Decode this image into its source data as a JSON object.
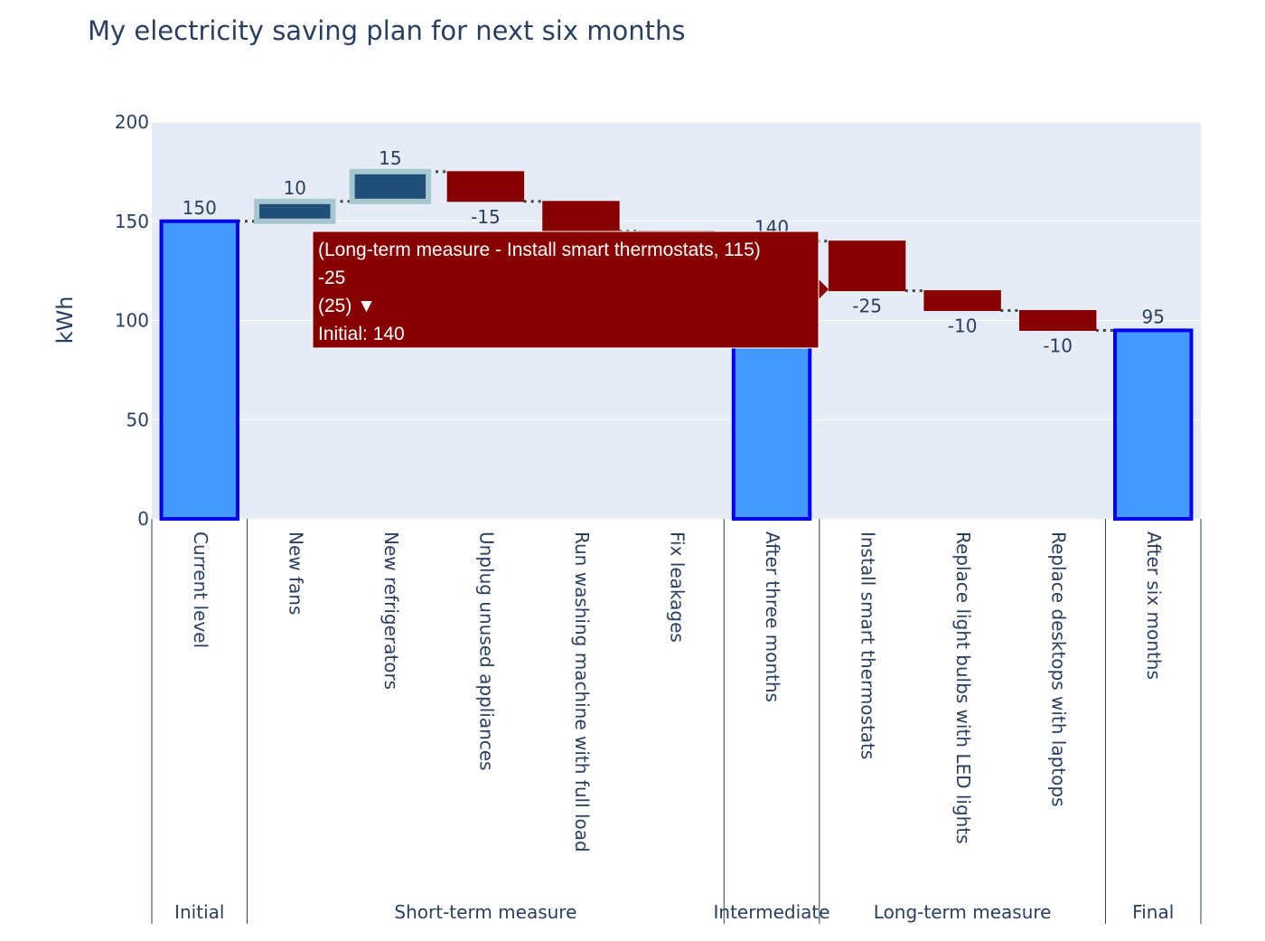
{
  "chart_data": {
    "type": "waterfall",
    "title": "My electricity saving plan for next six months",
    "ylabel": "kWh",
    "ylim": [
      0,
      200
    ],
    "yticks": [
      0,
      50,
      100,
      150,
      200
    ],
    "grid": true,
    "groups": [
      {
        "label": "Initial",
        "count": 1
      },
      {
        "label": "Short-term measure",
        "count": 5
      },
      {
        "label": "Intermediate",
        "count": 1
      },
      {
        "label": "Long-term measure",
        "count": 3
      },
      {
        "label": "Final",
        "count": 1
      }
    ],
    "bars": [
      {
        "category": "Current level",
        "measure": "total",
        "value": 150,
        "label": "150"
      },
      {
        "category": "New fans",
        "measure": "relative",
        "value": 10,
        "label": "10"
      },
      {
        "category": "New refrigerators",
        "measure": "relative",
        "value": 15,
        "label": "15"
      },
      {
        "category": "Unplug unused appliances",
        "measure": "relative",
        "value": -15,
        "label": "-15"
      },
      {
        "category": "Run washing machine with full load",
        "measure": "relative",
        "value": -15,
        "label": "-15"
      },
      {
        "category": "Fix leakages",
        "measure": "relative",
        "value": -5,
        "label": "-5"
      },
      {
        "category": "After three months",
        "measure": "total",
        "value": 140,
        "label": "140"
      },
      {
        "category": "Install smart thermostats",
        "measure": "relative",
        "value": -25,
        "label": "-25"
      },
      {
        "category": "Replace light bulbs with LED lights",
        "measure": "relative",
        "value": -10,
        "label": "-10"
      },
      {
        "category": "Replace desktops with laptops",
        "measure": "relative",
        "value": -10,
        "label": "-10"
      },
      {
        "category": "After six months",
        "measure": "total",
        "value": 95,
        "label": "95"
      }
    ],
    "colors": {
      "total_fill": "#4499ff",
      "total_line": "#0000ee",
      "increase_fill": "#1f4e79",
      "increase_line": "#a7c7cf",
      "decrease_fill": "#860000",
      "decrease_line": "#860000",
      "connector": "#444444",
      "plot_bg": "#e5ecf6",
      "text": "#2a3f5f"
    },
    "tooltip": {
      "target": "Install smart thermostats",
      "lines": [
        "(Long-term measure - Install smart thermostats, 115)",
        "-25",
        "(25) ▼",
        "Initial: 140"
      ]
    }
  }
}
